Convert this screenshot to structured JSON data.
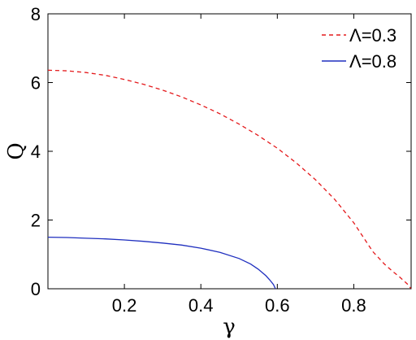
{
  "chart_data": {
    "type": "line",
    "title": "",
    "xlabel": "γ",
    "ylabel": "Q",
    "xlim": [
      0,
      0.95
    ],
    "ylim": [
      0,
      8
    ],
    "xticks": [
      0.2,
      0.4,
      0.6,
      0.8
    ],
    "xtick_labels": [
      "0.2",
      "0.4",
      "0.6",
      "0.8"
    ],
    "yticks": [
      0,
      2,
      4,
      6,
      8
    ],
    "ytick_labels": [
      "0",
      "2",
      "4",
      "6",
      "8"
    ],
    "grid": false,
    "legend_position": "top-right",
    "series": [
      {
        "name": "Λ=0.3",
        "color": "#e41a1c",
        "line_style": "dashed",
        "x": [
          0.0,
          0.05,
          0.1,
          0.15,
          0.2,
          0.25,
          0.3,
          0.35,
          0.4,
          0.45,
          0.5,
          0.55,
          0.6,
          0.65,
          0.7,
          0.75,
          0.8,
          0.85,
          0.88,
          0.9,
          0.92,
          0.94,
          0.95
        ],
        "y": [
          6.36,
          6.34,
          6.29,
          6.21,
          6.09,
          5.95,
          5.78,
          5.58,
          5.35,
          5.09,
          4.79,
          4.46,
          4.09,
          3.66,
          3.17,
          2.6,
          1.92,
          1.08,
          0.72,
          0.52,
          0.34,
          0.14,
          0.0
        ]
      },
      {
        "name": "Λ=0.8",
        "color": "#1f2fbf",
        "line_style": "solid",
        "x": [
          0.0,
          0.05,
          0.1,
          0.15,
          0.2,
          0.25,
          0.3,
          0.35,
          0.4,
          0.45,
          0.5,
          0.53,
          0.55,
          0.57,
          0.58,
          0.59,
          0.595
        ],
        "y": [
          1.5,
          1.49,
          1.47,
          1.45,
          1.42,
          1.38,
          1.33,
          1.27,
          1.18,
          1.06,
          0.88,
          0.72,
          0.57,
          0.38,
          0.26,
          0.12,
          0.0
        ]
      }
    ]
  }
}
